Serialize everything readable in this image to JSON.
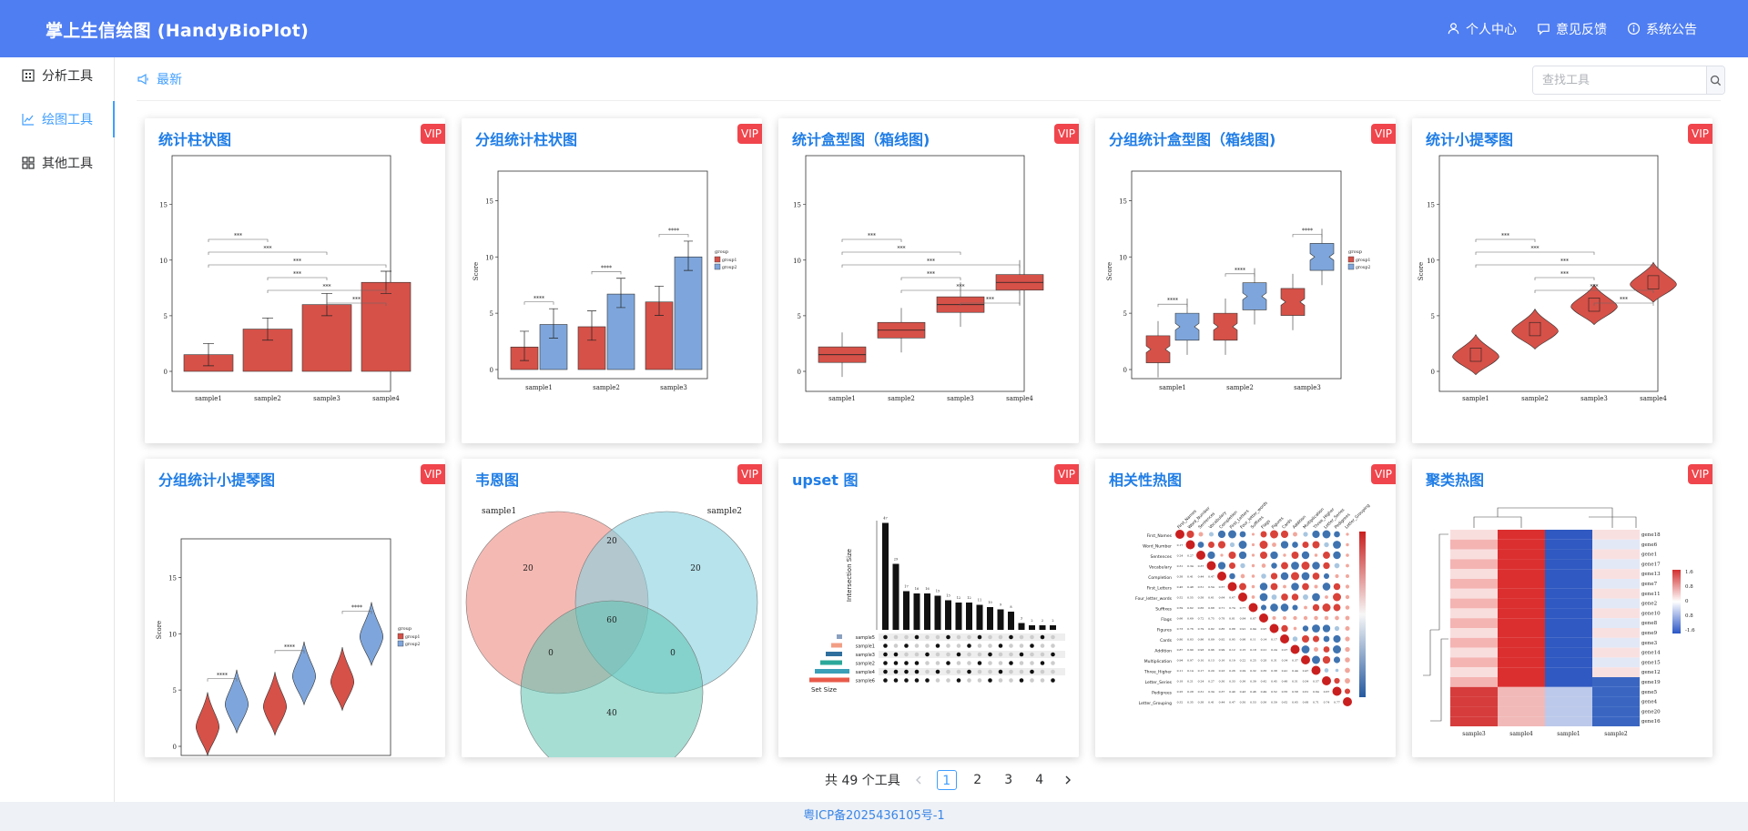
{
  "header": {
    "brand": "掌上生信绘图 (HandyBioPlot)",
    "nav": [
      "个人中心",
      "意见反馈",
      "系统公告"
    ]
  },
  "sidebar": {
    "items": [
      "分析工具",
      "绘图工具",
      "其他工具"
    ]
  },
  "tab": {
    "label": "最新"
  },
  "search": {
    "placeholder": "查找工具"
  },
  "badge": "VIP",
  "cards": [
    {
      "title": "统计柱状图",
      "categories": [
        "sample1",
        "sample2",
        "sample3",
        "sample4"
      ],
      "values": [
        1.5,
        3.8,
        6,
        8
      ],
      "yticks": [
        "0",
        "5",
        "10",
        "15"
      ],
      "sig": [
        "***"
      ]
    },
    {
      "title": "分组统计柱状图",
      "categories": [
        "sample1",
        "sample2",
        "sample3"
      ],
      "series": [
        {
          "name": "group1",
          "values": [
            2,
            3.8,
            6
          ]
        },
        {
          "name": "group2",
          "values": [
            4,
            6.7,
            10
          ]
        }
      ],
      "ylabel": "Score",
      "legend_title": "group",
      "sig": [
        "****"
      ]
    },
    {
      "title": "统计盒型图（箱线图)",
      "categories": [
        "sample1",
        "sample2",
        "sample3",
        "sample4"
      ],
      "values": [
        1.5,
        3.7,
        6,
        8
      ],
      "yticks": [
        "0",
        "5",
        "10",
        "15"
      ],
      "sig": [
        "***"
      ]
    },
    {
      "title": "分组统计盒型图（箱线图)",
      "categories": [
        "sample1",
        "sample2",
        "sample3"
      ],
      "series": [
        {
          "name": "group1",
          "values": [
            1.8,
            3.8,
            6
          ]
        },
        {
          "name": "group2",
          "values": [
            3.8,
            6.5,
            10
          ]
        }
      ],
      "ylabel": "Score",
      "legend_title": "group",
      "sig": [
        "****"
      ]
    },
    {
      "title": "统计小提琴图",
      "categories": [
        "sample1",
        "sample2",
        "sample3",
        "sample4"
      ],
      "values": [
        1.5,
        3.8,
        6,
        8
      ],
      "ylabel": "Score",
      "sig": [
        "***"
      ]
    },
    {
      "title": "分组统计小提琴图",
      "categories": [
        "sample1",
        "sample2",
        "sample3"
      ],
      "series": [
        {
          "name": "group1",
          "values": [
            2,
            3.8,
            6
          ]
        },
        {
          "name": "group2",
          "values": [
            4,
            6.5,
            10
          ]
        }
      ],
      "ylabel": "Score",
      "legend_title": "group",
      "sig": [
        "****"
      ]
    },
    {
      "title": "韦恩图",
      "sets": [
        "sample1",
        "sample2"
      ],
      "values": [
        "20",
        "20",
        "20",
        "60",
        "0",
        "0",
        "40"
      ]
    },
    {
      "title": "upset 图",
      "ylabel": "Intersection Size",
      "xlabel": "Set Size",
      "sets": [
        "sample5",
        "sample1",
        "sample3",
        "sample2",
        "sample4",
        "sample6"
      ]
    },
    {
      "title": "相关性热图",
      "rows": [
        "First_Names",
        "Word_Number",
        "Sentences",
        "Vocabulary",
        "Completion",
        "First_Letters",
        "Four_letter_words",
        "Suffixes",
        "Flags",
        "Figures",
        "Cards",
        "Addition",
        "Multiplication",
        "Three_Higher",
        "Letter_Series",
        "Pedigrees",
        "Letter_Grouping"
      ]
    },
    {
      "title": "聚类热图",
      "genes": [
        "gene18",
        "gene6",
        "gene1",
        "gene17",
        "gene13",
        "gene7",
        "gene11",
        "gene2",
        "gene10",
        "gene8",
        "gene9",
        "gene3",
        "gene14",
        "gene15",
        "gene12",
        "gene19",
        "gene5",
        "gene4",
        "gene20",
        "gene16"
      ],
      "samples": [
        "sample3",
        "sample4",
        "sample1",
        "sample2"
      ],
      "scale": [
        "1.6",
        "0.8",
        "0",
        "0.8",
        "-1.6"
      ]
    }
  ],
  "pagination": {
    "total": "共 49 个工具",
    "pages": [
      "1",
      "2",
      "3",
      "4"
    ]
  },
  "footer": {
    "icp": "粤ICP备2025436105号-1"
  }
}
